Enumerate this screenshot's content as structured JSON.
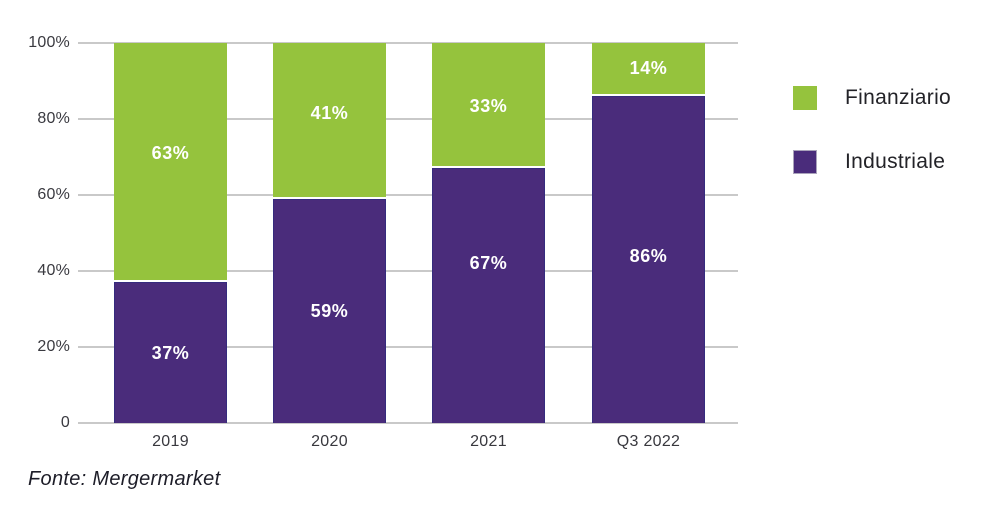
{
  "chart_data": {
    "type": "bar",
    "stacked": true,
    "percent_scale": true,
    "categories": [
      "2019",
      "2020",
      "2021",
      "Q3 2022"
    ],
    "series": [
      {
        "name": "Finanziario",
        "color": "#95C33D",
        "values": [
          63,
          41,
          33,
          14
        ],
        "labels": [
          "63%",
          "41%",
          "33%",
          "14%"
        ],
        "label_dy": [
          -8,
          -6,
          2,
          0
        ]
      },
      {
        "name": "Industriale",
        "color": "#4A2C7B",
        "border_color": "#352B7E",
        "values": [
          37,
          59,
          67,
          86
        ],
        "labels": [
          "37%",
          "59%",
          "67%",
          "86%"
        ],
        "label_dy": [
          0,
          0,
          -33,
          -4
        ]
      }
    ],
    "ylim": [
      0,
      100
    ],
    "yticks": [
      {
        "value": 0,
        "label": "0"
      },
      {
        "value": 20,
        "label": "20%"
      },
      {
        "value": 40,
        "label": "40%"
      },
      {
        "value": 60,
        "label": "60%"
      },
      {
        "value": 80,
        "label": "80%"
      },
      {
        "value": 100,
        "label": "100%"
      }
    ],
    "grid": true,
    "gridline_color": "#C9C9C9",
    "legend_position": "right",
    "label_color": "#FFFFFF",
    "source_note": "Fonte: Mergermarket"
  }
}
